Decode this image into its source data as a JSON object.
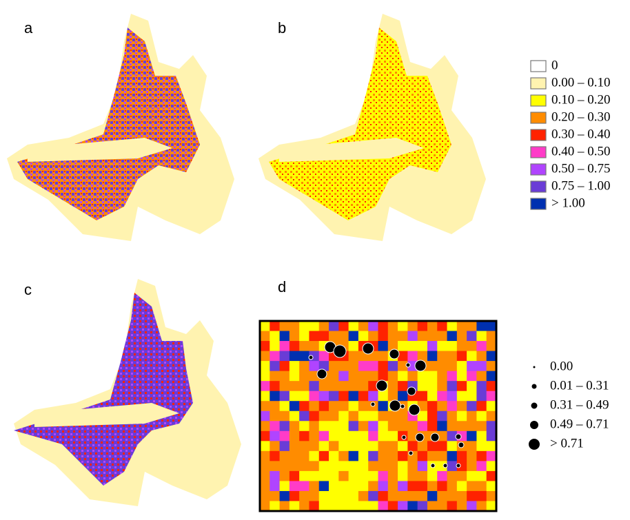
{
  "panels": [
    "a",
    "b",
    "c",
    "d"
  ],
  "legend_ratio": [
    {
      "label": "0",
      "color": "#ffffff"
    },
    {
      "label": "0.00 – 0.10",
      "color": "#fff3b0"
    },
    {
      "label": "0.10 – 0.20",
      "color": "#ffff00"
    },
    {
      "label": "0.20 – 0.30",
      "color": "#ff8c00"
    },
    {
      "label": "0.30 – 0.40",
      "color": "#ff2200"
    },
    {
      "label": "0.40 – 0.50",
      "color": "#ff3cc8"
    },
    {
      "label": "0.50 – 0.75",
      "color": "#b044ff"
    },
    {
      "label": "0.75 – 1.00",
      "color": "#6a3cd6"
    },
    {
      "label": "> 1.00",
      "color": "#0030b0"
    }
  ],
  "legend_points": [
    "0.00",
    "0.01 – 0.31",
    "0.31 – 0.49",
    "0.49 – 0.71",
    "> 0.71"
  ]
}
